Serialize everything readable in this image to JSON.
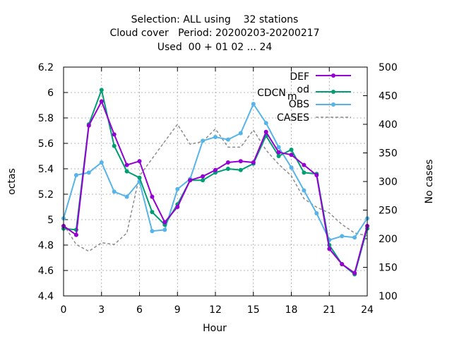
{
  "chart_data": {
    "type": "line",
    "title_lines": [
      "Selection: ALL using    32 stations",
      "Cloud cover   Period: 20200203-20200217",
      "Used  00 + 01 02 ... 24"
    ],
    "xlabel": "Hour",
    "ylabel": "octas",
    "y2label": "No cases",
    "xlim": [
      0,
      24
    ],
    "ylim": [
      4.4,
      6.2
    ],
    "y2lim": [
      100,
      500
    ],
    "xticks": [
      0,
      3,
      6,
      9,
      12,
      15,
      18,
      21,
      24
    ],
    "yticks": [
      4.4,
      4.6,
      4.8,
      5,
      5.2,
      5.4,
      5.6,
      5.8,
      6,
      6.2
    ],
    "y2ticks": [
      100,
      150,
      200,
      250,
      300,
      350,
      400,
      450,
      500
    ],
    "grid": true,
    "legend_position": "top-right",
    "x": [
      0,
      1,
      2,
      3,
      4,
      5,
      6,
      7,
      8,
      9,
      10,
      11,
      12,
      13,
      14,
      15,
      16,
      17,
      18,
      19,
      20,
      21,
      22,
      23,
      24
    ],
    "series": [
      {
        "name": "DEF",
        "color": "#9400d3",
        "axis": "y1",
        "values": [
          4.95,
          4.88,
          5.74,
          5.93,
          5.67,
          5.43,
          5.46,
          5.18,
          4.98,
          5.1,
          5.31,
          5.34,
          5.39,
          5.45,
          5.46,
          5.45,
          5.69,
          5.53,
          5.51,
          5.43,
          5.35,
          4.77,
          4.65,
          4.58,
          4.95
        ]
      },
      {
        "name": "CDCN_mod",
        "color": "#009e73",
        "axis": "y1",
        "values": [
          4.93,
          4.92,
          5.75,
          6.02,
          5.58,
          5.38,
          5.33,
          5.06,
          4.96,
          5.12,
          5.31,
          5.31,
          5.37,
          5.4,
          5.39,
          5.44,
          5.66,
          5.5,
          5.55,
          5.37,
          5.36,
          4.8,
          4.65,
          4.57,
          4.93
        ]
      },
      {
        "name": "OBS",
        "color": "#56b4e9",
        "axis": "y1",
        "values": [
          5.01,
          5.35,
          5.37,
          5.45,
          5.22,
          5.18,
          5.3,
          4.91,
          4.92,
          5.24,
          5.32,
          5.62,
          5.65,
          5.63,
          5.68,
          5.91,
          5.76,
          5.57,
          5.41,
          5.23,
          5.05,
          4.84,
          4.87,
          4.86,
          5.01
        ]
      },
      {
        "name": "CASES",
        "color": "#8c8c8c",
        "axis": "y2",
        "dashed": true,
        "values": [
          225,
          190,
          178,
          193,
          190,
          210,
          310,
          340,
          370,
          400,
          365,
          370,
          392,
          360,
          360,
          390,
          355,
          330,
          310,
          270,
          255,
          245,
          225,
          210,
          205
        ]
      }
    ],
    "legend_labels": {
      "def": "DEF",
      "cdcn_main": "CDCN",
      "cdcn_sub": "m",
      "cdcn_tail": "od",
      "obs": "OBS",
      "cases": "CASES"
    }
  }
}
